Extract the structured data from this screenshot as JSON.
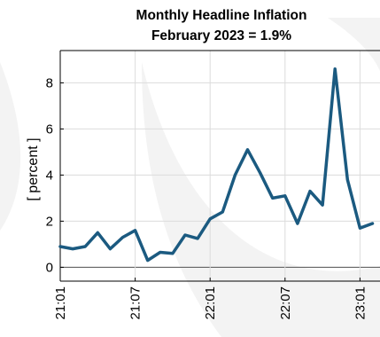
{
  "chart_data": {
    "type": "line",
    "title": "Monthly Headline Inflation",
    "subtitle": "February 2023 = 1.9%",
    "xlabel": "",
    "ylabel": "[ percent ]",
    "ylim": [
      -0.6,
      9.4
    ],
    "yticks": [
      0,
      2,
      4,
      6,
      8
    ],
    "xticks": [
      "21:01",
      "21:07",
      "22:01",
      "22:07",
      "23:01"
    ],
    "grid": true,
    "series": [
      {
        "color": "#1b5a80",
        "x": [
          "2021-01",
          "2021-02",
          "2021-03",
          "2021-04",
          "2021-05",
          "2021-06",
          "2021-07",
          "2021-08",
          "2021-09",
          "2021-10",
          "2021-11",
          "2021-12",
          "2022-01",
          "2022-02",
          "2022-03",
          "2022-04",
          "2022-05",
          "2022-06",
          "2022-07",
          "2022-08",
          "2022-09",
          "2022-10",
          "2022-11",
          "2022-12",
          "2023-01",
          "2023-02"
        ],
        "values": [
          0.9,
          0.8,
          0.9,
          1.5,
          0.8,
          1.3,
          1.6,
          0.3,
          0.65,
          0.6,
          1.4,
          1.25,
          2.1,
          2.4,
          4.0,
          5.1,
          4.1,
          3.0,
          3.1,
          1.9,
          3.3,
          2.7,
          8.6,
          3.8,
          1.7,
          1.9
        ]
      }
    ]
  }
}
